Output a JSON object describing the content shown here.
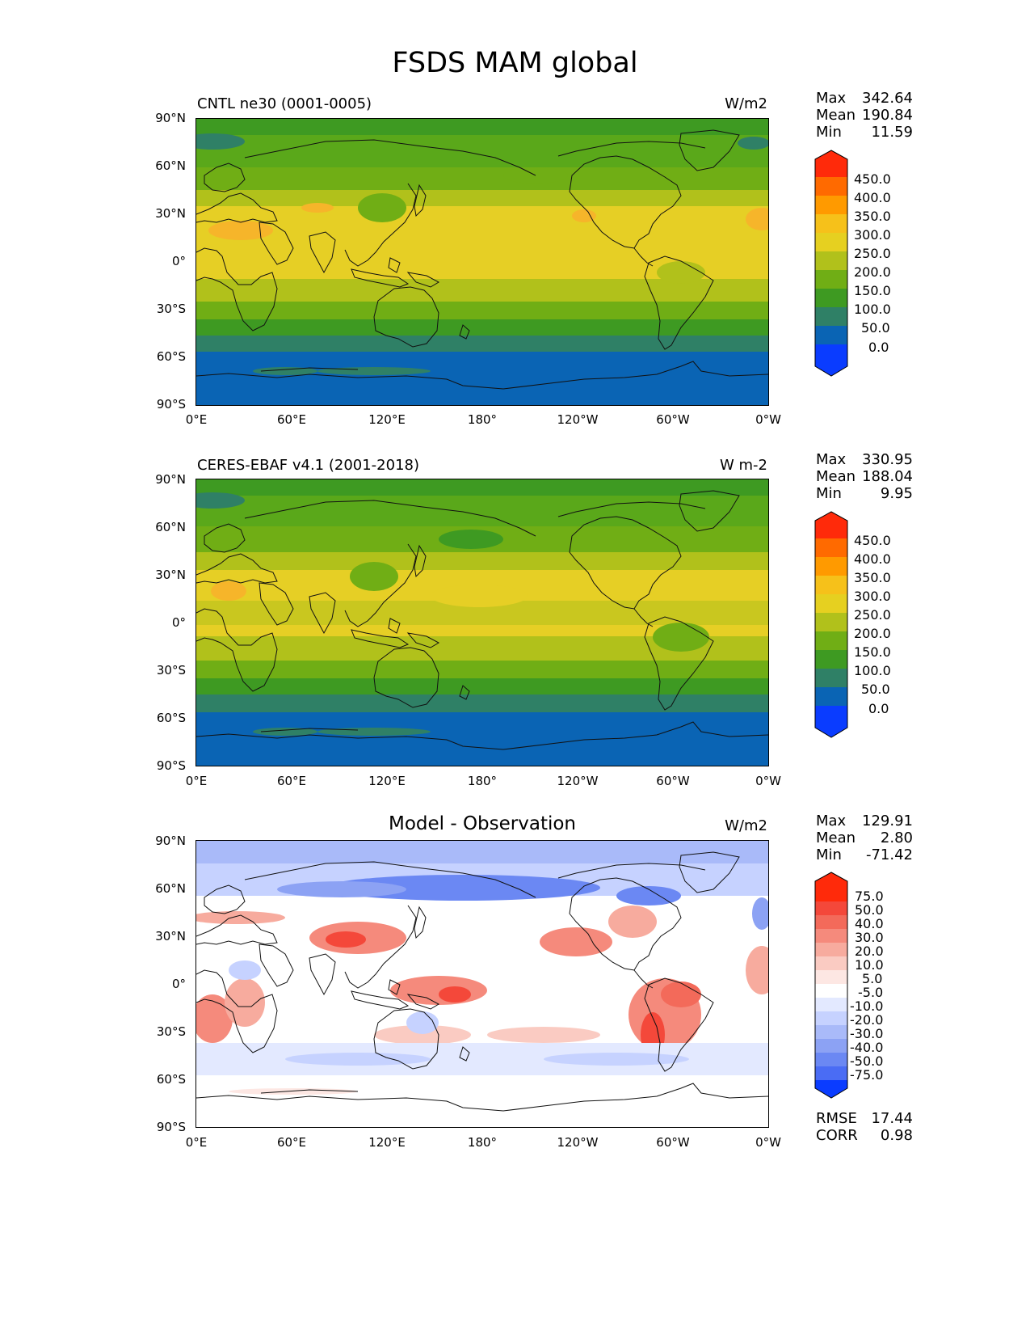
{
  "figure": {
    "title": "FSDS MAM global",
    "x_ticks": [
      "0°E",
      "60°E",
      "120°E",
      "180°",
      "120°W",
      "60°W",
      "0°W"
    ],
    "y_ticks": [
      "90°N",
      "60°N",
      "30°N",
      "0°",
      "30°S",
      "60°S",
      "90°S"
    ]
  },
  "panels": [
    {
      "left_title": "CNTL ne30 (0001-0005)",
      "center_title": "",
      "units": "W/m2",
      "stats": {
        "max_label": "Max",
        "max": "342.64",
        "mean_label": "Mean",
        "mean": "190.84",
        "min_label": "Min",
        "min": "11.59"
      },
      "colorbar": {
        "labels": [
          "450.0",
          "400.0",
          "350.0",
          "300.0",
          "250.0",
          "200.0",
          "150.0",
          "100.0",
          "50.0",
          "0.0"
        ],
        "colors": [
          "#ff2a0a",
          "#ff6a00",
          "#ff9a00",
          "#f6c11a",
          "#e6d020",
          "#b1c11b",
          "#70ae15",
          "#3e9a22",
          "#2f8066",
          "#0a64b4",
          "#0a3cff"
        ]
      }
    },
    {
      "left_title": "CERES-EBAF v4.1 (2001-2018)",
      "center_title": "",
      "units": "W m-2",
      "stats": {
        "max_label": "Max",
        "max": "330.95",
        "mean_label": "Mean",
        "mean": "188.04",
        "min_label": "Min",
        "min": "9.95"
      },
      "colorbar": {
        "labels": [
          "450.0",
          "400.0",
          "350.0",
          "300.0",
          "250.0",
          "200.0",
          "150.0",
          "100.0",
          "50.0",
          "0.0"
        ],
        "colors": [
          "#ff2a0a",
          "#ff6a00",
          "#ff9a00",
          "#f6c11a",
          "#e6d020",
          "#b1c11b",
          "#70ae15",
          "#3e9a22",
          "#2f8066",
          "#0a64b4",
          "#0a3cff"
        ]
      }
    },
    {
      "left_title": "",
      "center_title": "Model - Observation",
      "units": "W/m2",
      "stats": {
        "max_label": "Max",
        "max": "129.91",
        "mean_label": "Mean",
        "mean": "2.80",
        "min_label": "Min",
        "min": "-71.42"
      },
      "colorbar": {
        "labels": [
          "75.0",
          "50.0",
          "40.0",
          "30.0",
          "20.0",
          "10.0",
          "5.0",
          "-5.0",
          "-10.0",
          "-20.0",
          "-30.0",
          "-40.0",
          "-50.0",
          "-75.0"
        ],
        "colors": [
          "#ff2a0a",
          "#f4483a",
          "#f36a5a",
          "#f58a7c",
          "#f7ab9e",
          "#facbc2",
          "#fde7e3",
          "#ffffff",
          "#e3e9ff",
          "#c6d2ff",
          "#a9baf9",
          "#8ca2f4",
          "#6b88f3",
          "#4a6cf4",
          "#0a3cff"
        ]
      },
      "extra": {
        "rmse_label": "RMSE",
        "rmse": "17.44",
        "corr_label": "CORR",
        "corr": "0.98"
      }
    }
  ],
  "map_data": {
    "projection": "PlateCarree",
    "lon_range": [
      0,
      360
    ],
    "lat_range": [
      -90,
      90
    ],
    "panels": [
      {
        "field": "FSDS model climatology",
        "season": "MAM"
      },
      {
        "field": "FSDS CERES-EBAF observations",
        "season": "MAM"
      },
      {
        "field": "FSDS model minus observation",
        "season": "MAM"
      }
    ]
  }
}
